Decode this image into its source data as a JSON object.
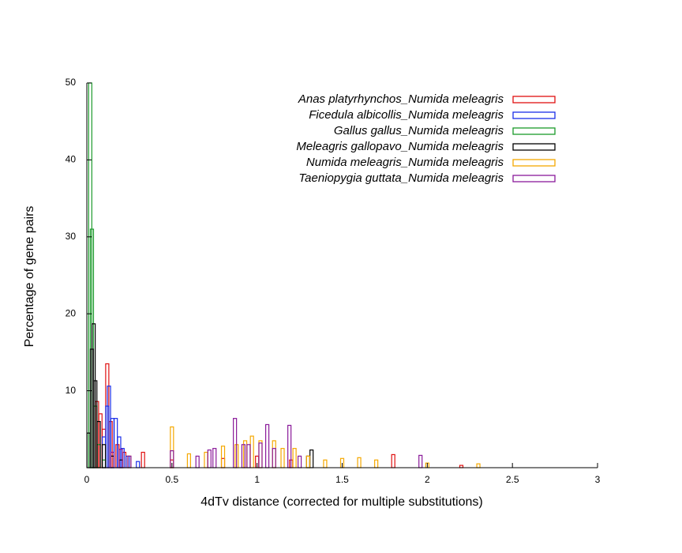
{
  "chart_data": {
    "type": "bar",
    "x_label": "4dTv distance (corrected for multiple substitutions)",
    "y_label": "Percentage of gene pairs",
    "xlim": [
      0,
      3
    ],
    "xticks": [
      0,
      0.5,
      1,
      1.5,
      2,
      2.5,
      3
    ],
    "ylim": [
      0,
      50
    ],
    "yticks": [
      10,
      20,
      30,
      40,
      50
    ],
    "legend": "upper right",
    "series": [
      {
        "name": "Anas platyrhynchos_Numida meleagris",
        "color": "#e01010",
        "x": [
          0.06,
          0.08,
          0.1,
          0.12,
          0.14,
          0.18,
          0.22,
          0.33,
          0.5,
          0.8,
          1.0,
          1.2,
          1.8,
          2.2
        ],
        "values": [
          8.6,
          7,
          5,
          13.5,
          6,
          3,
          2,
          2,
          1,
          1.2,
          1.5,
          1,
          1.7,
          0.3
        ]
      },
      {
        "name": "Ficedula albicollis_Numida meleagris",
        "color": "#1a2ee8",
        "x": [
          0.1,
          0.12,
          0.13,
          0.15,
          0.17,
          0.19,
          0.21,
          0.24,
          0.3
        ],
        "values": [
          4,
          8,
          10.6,
          6.4,
          6.4,
          4,
          2.5,
          1.5,
          0.8
        ]
      },
      {
        "name": "Gallus gallus_Numida meleagris",
        "color": "#1a9a2a",
        "x": [
          0.02,
          0.03,
          0.05,
          0.07,
          0.1
        ],
        "values": [
          50,
          31,
          8,
          3,
          1
        ]
      },
      {
        "name": "Meleagris gallopavo_Numida meleagris",
        "color": "#000000",
        "x": [
          0.01,
          0.03,
          0.04,
          0.05,
          0.07,
          0.1,
          0.15,
          0.2,
          1.3,
          1.32
        ],
        "values": [
          4.5,
          15.4,
          18.7,
          11.3,
          6,
          3,
          1.5,
          1,
          1.5,
          2.3
        ]
      },
      {
        "name": "Numida meleagris_Numida meleagris",
        "color": "#f5a800",
        "x": [
          0.25,
          0.5,
          0.6,
          0.7,
          0.8,
          0.88,
          0.93,
          0.97,
          1.02,
          1.1,
          1.15,
          1.22,
          1.3,
          1.4,
          1.5,
          1.6,
          1.7,
          2.0,
          2.3
        ],
        "values": [
          1.5,
          5.3,
          1.8,
          2,
          2.8,
          3,
          3.5,
          4.1,
          3.5,
          3.5,
          2.5,
          2.5,
          1.5,
          1,
          1.2,
          1.3,
          1,
          0.6,
          0.5
        ]
      },
      {
        "name": "Taeniopygia guttata_Numida meleagris",
        "color": "#8a1a9a",
        "x": [
          0.15,
          0.2,
          0.25,
          0.5,
          0.65,
          0.72,
          0.75,
          0.87,
          0.92,
          0.95,
          1.02,
          1.06,
          1.1,
          1.19,
          1.25,
          1.96
        ],
        "values": [
          2,
          2.4,
          1.5,
          2.2,
          1.5,
          2.3,
          2.5,
          6.4,
          3,
          3,
          3.2,
          5.6,
          2.5,
          5.5,
          1.5,
          1.6
        ]
      }
    ]
  }
}
